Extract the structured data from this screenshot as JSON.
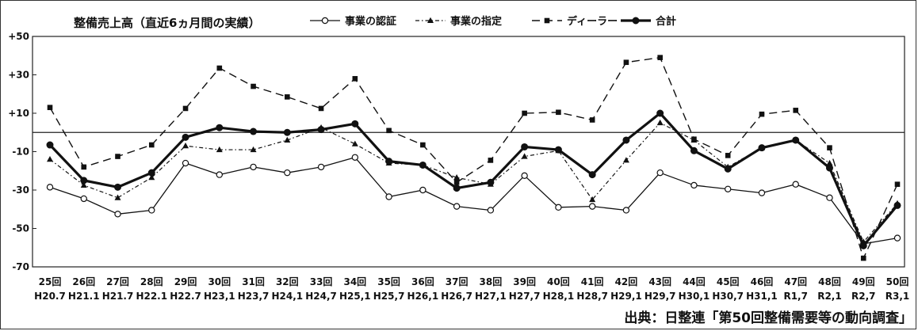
{
  "chart_data": {
    "type": "line",
    "title": "整備売上高（直近6ヵ月間の実績）",
    "source": "出典：日整連「第50回整備需要等の動向調査」",
    "ylim": [
      -70,
      50
    ],
    "yticks": [
      "+50",
      "+30",
      "+10",
      "-10",
      "-30",
      "-50",
      "-70"
    ],
    "ytick_values": [
      50,
      30,
      10,
      -10,
      -30,
      -50,
      -70
    ],
    "zero_line": 0,
    "categories": [
      {
        "round": "25回",
        "date": "H20.7"
      },
      {
        "round": "26回",
        "date": "H21.1"
      },
      {
        "round": "27回",
        "date": "H21.7"
      },
      {
        "round": "28回",
        "date": "H22.1"
      },
      {
        "round": "29回",
        "date": "H22.7"
      },
      {
        "round": "30回",
        "date": "H23,1"
      },
      {
        "round": "31回",
        "date": "H23,7"
      },
      {
        "round": "32回",
        "date": "H24,1"
      },
      {
        "round": "33回",
        "date": "H24,7"
      },
      {
        "round": "34回",
        "date": "H25,1"
      },
      {
        "round": "35回",
        "date": "H25,7"
      },
      {
        "round": "36回",
        "date": "H26,1"
      },
      {
        "round": "37回",
        "date": "H26,7"
      },
      {
        "round": "38回",
        "date": "H27,1"
      },
      {
        "round": "39回",
        "date": "H27,7"
      },
      {
        "round": "40回",
        "date": "H28,1"
      },
      {
        "round": "41回",
        "date": "H28,7"
      },
      {
        "round": "42回",
        "date": "H29,1"
      },
      {
        "round": "43回",
        "date": "H29,7"
      },
      {
        "round": "44回",
        "date": "H30,1"
      },
      {
        "round": "45回",
        "date": "H30,7"
      },
      {
        "round": "46回",
        "date": "H31,1"
      },
      {
        "round": "47回",
        "date": "R1,7"
      },
      {
        "round": "48回",
        "date": "R2,1"
      },
      {
        "round": "49回",
        "date": "R2,7"
      },
      {
        "round": "50回",
        "date": "R3,1"
      }
    ],
    "series": [
      {
        "name": "事業の認証",
        "style": "solid-thin",
        "marker": "open-circle",
        "color": "#111111",
        "values": [
          -28.5,
          -34.5,
          -42.5,
          -40.5,
          -16,
          -22,
          -18,
          -21,
          -18,
          -13,
          -33.5,
          -30,
          -38.5,
          -40.5,
          -22.5,
          -39,
          -38.5,
          -40.5,
          -21,
          -27.5,
          -29.5,
          -31.5,
          -27,
          -34,
          -58,
          -55
        ]
      },
      {
        "name": "事業の指定",
        "style": "dash-dot",
        "marker": "triangle",
        "color": "#111111",
        "values": [
          -14,
          -27.5,
          -34,
          -23.5,
          -7,
          -9,
          -9,
          -4,
          2.5,
          -6,
          -16,
          -17,
          -23.5,
          -27,
          -12.5,
          -9.5,
          -35,
          -14.5,
          5,
          -4,
          -18,
          -8,
          -4,
          -16,
          -57,
          -37
        ]
      },
      {
        "name": "ディーラー",
        "style": "long-dash",
        "marker": "square",
        "color": "#111111",
        "values": [
          13,
          -18,
          -12.5,
          -6.5,
          12.5,
          33.5,
          24,
          18.5,
          12.5,
          28,
          1,
          -6.5,
          -26,
          -14.5,
          10,
          10.5,
          6.5,
          36.5,
          39,
          -3.5,
          -12,
          9.5,
          11.5,
          -8,
          -65.5,
          -27
        ]
      },
      {
        "name": "合計",
        "style": "solid-thick",
        "marker": "filled-circle",
        "color": "#111111",
        "values": [
          -6.5,
          -25,
          -28.5,
          -21,
          -2.5,
          2.5,
          0.5,
          0,
          1.5,
          4.5,
          -15,
          -17,
          -29,
          -26,
          -7.5,
          -9,
          -22,
          -4,
          10,
          -9.5,
          -19,
          -8,
          -4,
          -18.5,
          -59,
          -38
        ]
      }
    ]
  }
}
